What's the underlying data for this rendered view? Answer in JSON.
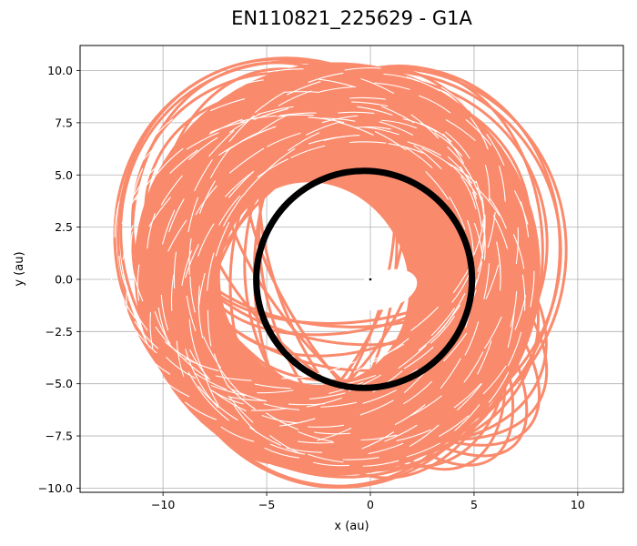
{
  "chart_data": {
    "type": "line",
    "title": "EN110821_225629 - G1A",
    "xlabel": "x (au)",
    "ylabel": "y (au)",
    "xlim": [
      -14,
      12.2
    ],
    "ylim": [
      -10.2,
      11.2
    ],
    "grid": true,
    "xticks": [
      -10,
      -5,
      0,
      5,
      10
    ],
    "xtick_labels": [
      "−10",
      "−5",
      "0",
      "5",
      "10"
    ],
    "yticks": [
      -10,
      -7.5,
      -5,
      -2.5,
      0,
      2.5,
      5,
      7.5,
      10
    ],
    "ytick_labels": [
      "−10.0",
      "−7.5",
      "−5.0",
      "−2.5",
      "0.0",
      "2.5",
      "5.0",
      "7.5",
      "10.0"
    ],
    "series": [
      {
        "color": "#fa8a6c",
        "style": "dense precessing orbit trace",
        "inner_ellipse": {
          "cx": -2.7,
          "cy": -0.2,
          "rx": 4.5,
          "ry": 4.9,
          "rot_deg": -20
        },
        "outer_ellipse": {
          "cx": -1.6,
          "cy": 0.5,
          "rx": 9.8,
          "ry": 9.9,
          "rot_deg": 0
        },
        "holes": [
          {
            "cx": 0.7,
            "cy": -0.5,
            "rx": 1.6,
            "ry": 0.9,
            "rot_deg": -18
          },
          {
            "cx": -1.0,
            "cy": -0.9,
            "rx": 1.2,
            "ry": 0.6,
            "rot_deg": -25
          }
        ]
      },
      {
        "color": "#000000",
        "style": "circular orbit",
        "center": [
          -0.3,
          0.0
        ],
        "radius": 5.2
      }
    ],
    "points": [
      {
        "x": 0,
        "y": 0,
        "color": "#000000"
      }
    ]
  }
}
